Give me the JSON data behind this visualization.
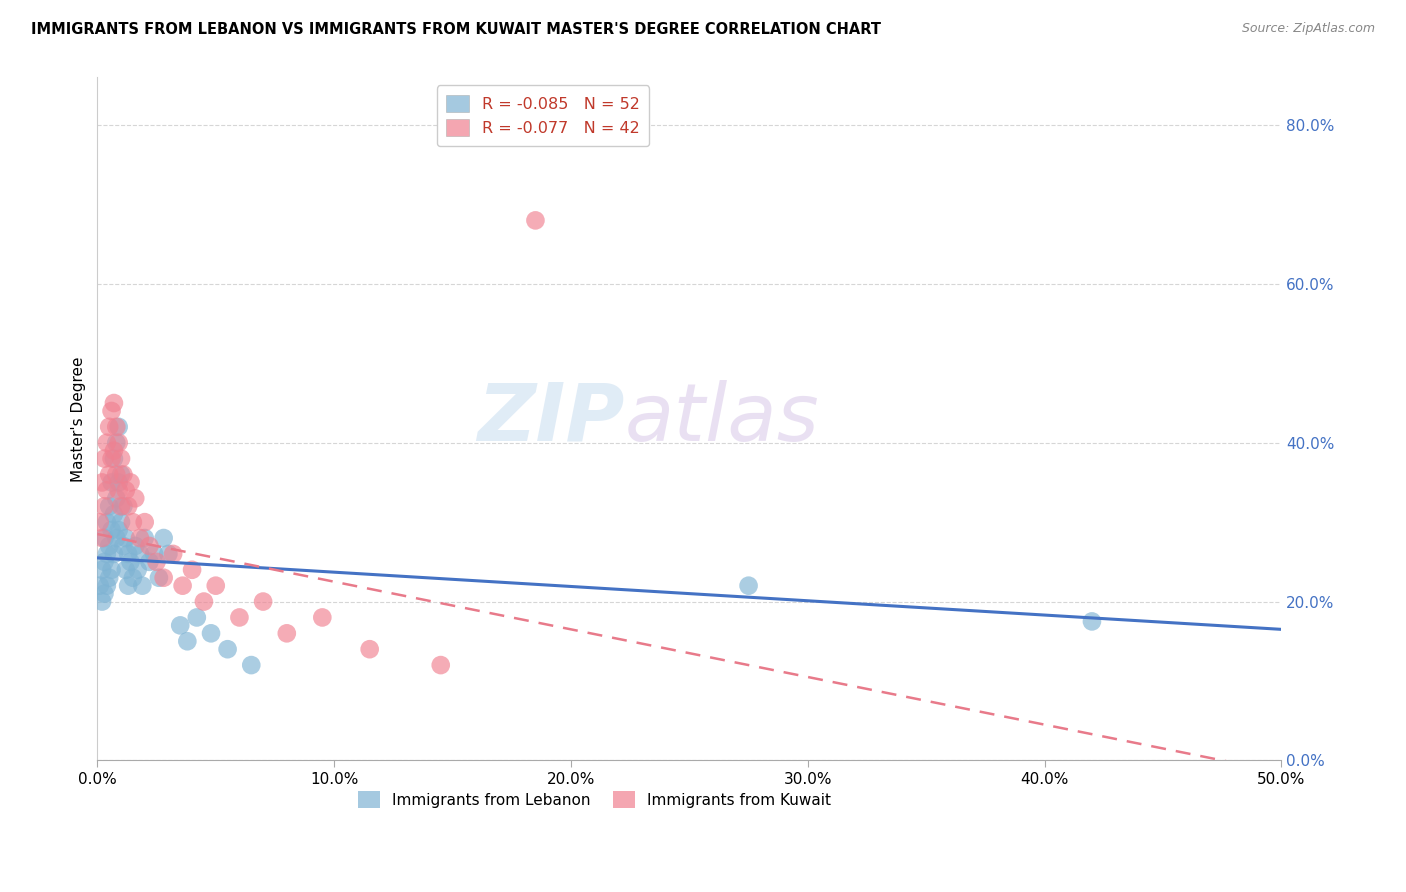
{
  "title": "IMMIGRANTS FROM LEBANON VS IMMIGRANTS FROM KUWAIT MASTER'S DEGREE CORRELATION CHART",
  "source": "Source: ZipAtlas.com",
  "ylabel": "Master's Degree",
  "xlim": [
    0.0,
    0.5
  ],
  "ylim": [
    0.0,
    0.86
  ],
  "lebanon_scatter_x": [
    0.001,
    0.002,
    0.002,
    0.003,
    0.003,
    0.003,
    0.004,
    0.004,
    0.004,
    0.005,
    0.005,
    0.005,
    0.006,
    0.006,
    0.006,
    0.007,
    0.007,
    0.007,
    0.008,
    0.008,
    0.008,
    0.009,
    0.009,
    0.009,
    0.01,
    0.01,
    0.011,
    0.011,
    0.012,
    0.012,
    0.013,
    0.013,
    0.014,
    0.015,
    0.016,
    0.017,
    0.018,
    0.019,
    0.02,
    0.022,
    0.024,
    0.026,
    0.028,
    0.03,
    0.035,
    0.038,
    0.042,
    0.048,
    0.055,
    0.065,
    0.275,
    0.42
  ],
  "lebanon_scatter_y": [
    0.22,
    0.24,
    0.2,
    0.28,
    0.25,
    0.21,
    0.3,
    0.26,
    0.22,
    0.32,
    0.27,
    0.23,
    0.35,
    0.29,
    0.24,
    0.38,
    0.31,
    0.26,
    0.4,
    0.33,
    0.28,
    0.42,
    0.35,
    0.29,
    0.36,
    0.3,
    0.32,
    0.27,
    0.28,
    0.24,
    0.26,
    0.22,
    0.25,
    0.23,
    0.27,
    0.24,
    0.26,
    0.22,
    0.28,
    0.25,
    0.26,
    0.23,
    0.28,
    0.26,
    0.17,
    0.15,
    0.18,
    0.16,
    0.14,
    0.12,
    0.22,
    0.175
  ],
  "kuwait_scatter_x": [
    0.001,
    0.002,
    0.002,
    0.003,
    0.003,
    0.004,
    0.004,
    0.005,
    0.005,
    0.006,
    0.006,
    0.007,
    0.007,
    0.008,
    0.008,
    0.009,
    0.009,
    0.01,
    0.01,
    0.011,
    0.012,
    0.013,
    0.014,
    0.015,
    0.016,
    0.018,
    0.02,
    0.022,
    0.025,
    0.028,
    0.032,
    0.036,
    0.04,
    0.045,
    0.05,
    0.06,
    0.07,
    0.08,
    0.095,
    0.115,
    0.145,
    0.185
  ],
  "kuwait_scatter_y": [
    0.3,
    0.35,
    0.28,
    0.38,
    0.32,
    0.4,
    0.34,
    0.42,
    0.36,
    0.44,
    0.38,
    0.45,
    0.39,
    0.42,
    0.36,
    0.4,
    0.34,
    0.38,
    0.32,
    0.36,
    0.34,
    0.32,
    0.35,
    0.3,
    0.33,
    0.28,
    0.3,
    0.27,
    0.25,
    0.23,
    0.26,
    0.22,
    0.24,
    0.2,
    0.22,
    0.18,
    0.2,
    0.16,
    0.18,
    0.14,
    0.12,
    0.68
  ],
  "lebanon_trend_x": [
    0.0,
    0.5
  ],
  "lebanon_trend_y": [
    0.255,
    0.165
  ],
  "kuwait_trend_x": [
    0.0,
    0.5
  ],
  "kuwait_trend_y": [
    0.285,
    -0.015
  ],
  "scatter_blue": "#7fb3d3",
  "scatter_pink": "#f08090",
  "trend_blue": "#4472c4",
  "trend_pink": "#e87a8a",
  "watermark_zip": "ZIP",
  "watermark_atlas": "atlas",
  "grid_color": "#cccccc",
  "background": "#ffffff",
  "yticks": [
    0.0,
    0.2,
    0.4,
    0.6,
    0.8
  ],
  "ytick_labels": [
    "0.0%",
    "20.0%",
    "40.0%",
    "60.0%",
    "80.0%"
  ],
  "xticks": [
    0.0,
    0.1,
    0.2,
    0.3,
    0.4,
    0.5
  ],
  "xtick_labels": [
    "0.0%",
    "10.0%",
    "20.0%",
    "30.0%",
    "40.0%",
    "50.0%"
  ],
  "legend_label_blue": "R = -0.085   N = 52",
  "legend_label_pink": "R = -0.077   N = 42",
  "bottom_legend_blue": "Immigrants from Lebanon",
  "bottom_legend_pink": "Immigrants from Kuwait"
}
